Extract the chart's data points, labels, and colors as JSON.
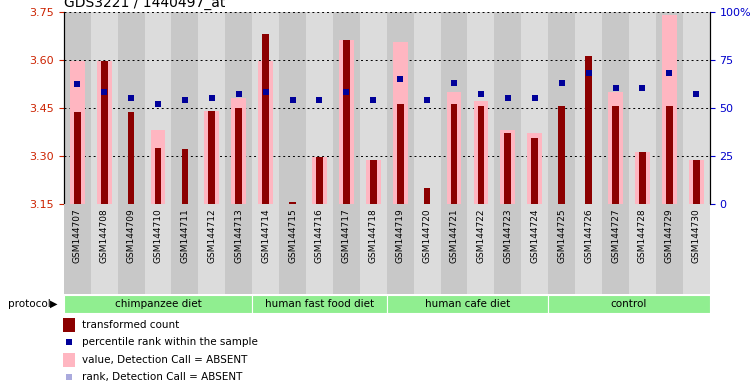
{
  "title": "GDS3221 / 1440497_at",
  "samples": [
    "GSM144707",
    "GSM144708",
    "GSM144709",
    "GSM144710",
    "GSM144711",
    "GSM144712",
    "GSM144713",
    "GSM144714",
    "GSM144715",
    "GSM144716",
    "GSM144717",
    "GSM144718",
    "GSM144719",
    "GSM144720",
    "GSM144721",
    "GSM144722",
    "GSM144723",
    "GSM144724",
    "GSM144725",
    "GSM144726",
    "GSM144727",
    "GSM144728",
    "GSM144729",
    "GSM144730"
  ],
  "transformed_count": [
    3.435,
    3.595,
    3.435,
    3.325,
    3.32,
    3.44,
    3.45,
    3.68,
    3.155,
    3.295,
    3.66,
    3.285,
    3.46,
    3.2,
    3.46,
    3.455,
    3.37,
    3.355,
    3.455,
    3.61,
    3.455,
    3.31,
    3.455,
    3.285
  ],
  "percentile_rank": [
    62,
    58,
    55,
    52,
    54,
    55,
    57,
    58,
    54,
    54,
    58,
    54,
    65,
    54,
    63,
    57,
    55,
    55,
    63,
    68,
    60,
    60,
    68,
    57
  ],
  "value_absent": [
    3.595,
    3.595,
    null,
    3.38,
    null,
    3.44,
    3.48,
    3.595,
    null,
    3.295,
    3.66,
    3.285,
    3.655,
    null,
    3.5,
    3.47,
    3.38,
    3.37,
    null,
    null,
    3.5,
    3.31,
    3.74,
    3.285
  ],
  "rank_absent": [
    62,
    58,
    55,
    52,
    54,
    55,
    57,
    58,
    54,
    54,
    58,
    54,
    65,
    54,
    63,
    57,
    55,
    55,
    63,
    68,
    60,
    60,
    68,
    57
  ],
  "group_boundaries": [
    [
      0,
      7,
      "chimpanzee diet"
    ],
    [
      7,
      12,
      "human fast food diet"
    ],
    [
      12,
      18,
      "human cafe diet"
    ],
    [
      18,
      24,
      "control"
    ]
  ],
  "ylim": [
    3.15,
    3.75
  ],
  "yticks": [
    3.15,
    3.3,
    3.45,
    3.6,
    3.75
  ],
  "y2lim": [
    0,
    100
  ],
  "y2ticks": [
    0,
    25,
    50,
    75,
    100
  ],
  "bar_color_dark": "#8B0000",
  "bar_color_light": "#FFB6C1",
  "dot_color_dark": "#000099",
  "dot_color_light": "#AAAADD",
  "group_color": "#90EE90",
  "bg_color": "#DCDCDC",
  "title_fontsize": 10,
  "axis_color_red": "#CC2200",
  "axis_color_blue": "#0000CC"
}
